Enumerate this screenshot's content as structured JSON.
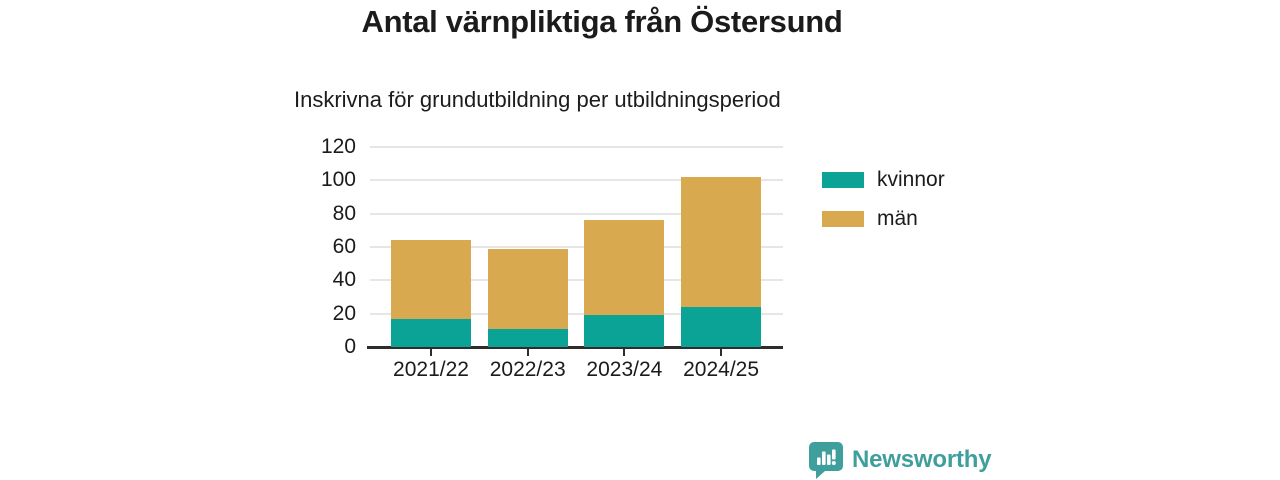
{
  "title": "Antal värnpliktiga från Östersund",
  "subtitle": "Inskrivna för grundutbildning per utbildningsperiod",
  "logo": {
    "text": "Newsworthy",
    "icon": "speech-bubble-bar-chart-icon"
  },
  "colors": {
    "kvinnor": "#0aa396",
    "man": "#d9a94f",
    "grid": "#e6e6e6",
    "axis": "#2d2d2d",
    "text": "#1b1b1b",
    "logo": "#3f9f9d"
  },
  "chart_data": {
    "type": "bar",
    "stacked": true,
    "title": "Antal värnpliktiga från Östersund",
    "subtitle": "Inskrivna för grundutbildning per utbildningsperiod",
    "categories": [
      "2021/22",
      "2022/23",
      "2023/24",
      "2024/25"
    ],
    "series": [
      {
        "name": "kvinnor",
        "color": "#0aa396",
        "values": [
          17,
          11,
          19,
          24
        ]
      },
      {
        "name": "män",
        "color": "#d9a94f",
        "values": [
          47,
          48,
          57,
          78
        ]
      }
    ],
    "totals": [
      64,
      59,
      76,
      102
    ],
    "xlabel": "",
    "ylabel": "",
    "ylim": [
      0,
      120
    ],
    "ytick_step": 20,
    "grid": true,
    "legend_position": "right"
  }
}
